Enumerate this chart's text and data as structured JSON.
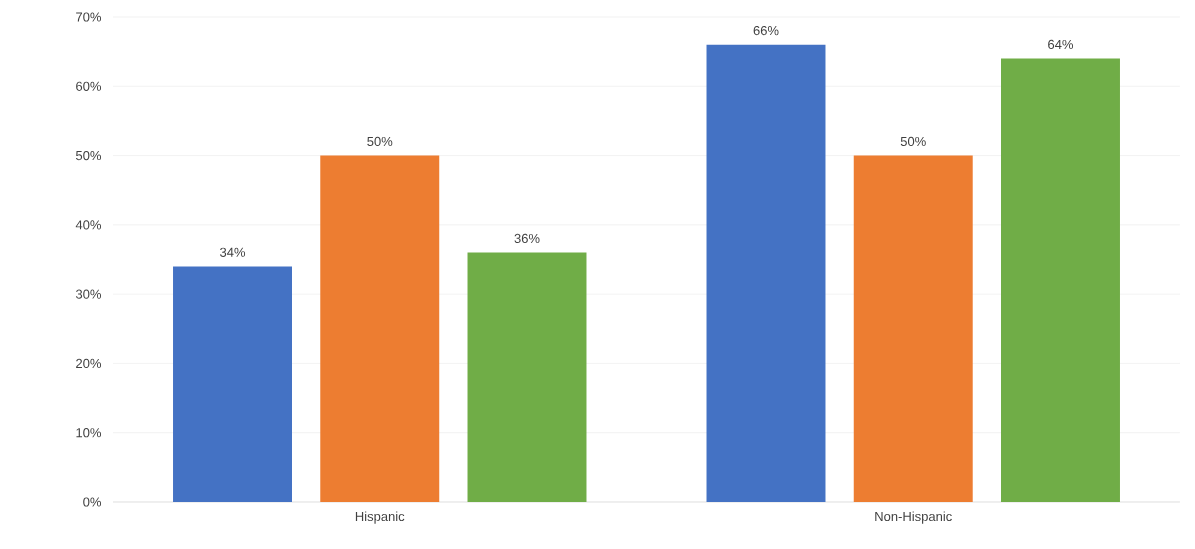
{
  "chart_data": {
    "type": "bar",
    "categories": [
      "Hispanic",
      "Non-Hispanic"
    ],
    "series": [
      {
        "color": "#4472c4",
        "values": [
          34,
          66
        ],
        "value_labels": [
          "34%",
          "66%"
        ]
      },
      {
        "color": "#ed7d31",
        "values": [
          50,
          50
        ],
        "value_labels": [
          "50%",
          "50%"
        ]
      },
      {
        "color": "#70ad47",
        "values": [
          36,
          64
        ],
        "value_labels": [
          "36%",
          "64%"
        ]
      }
    ],
    "ylim": [
      0,
      70
    ],
    "yticks": [
      {
        "value": 0,
        "label": "0%"
      },
      {
        "value": 10,
        "label": "10%"
      },
      {
        "value": 20,
        "label": "20%"
      },
      {
        "value": 30,
        "label": "30%"
      },
      {
        "value": 40,
        "label": "40%"
      },
      {
        "value": 50,
        "label": "50%"
      },
      {
        "value": 60,
        "label": "60%"
      },
      {
        "value": 70,
        "label": "70%"
      }
    ],
    "grid": "y"
  }
}
